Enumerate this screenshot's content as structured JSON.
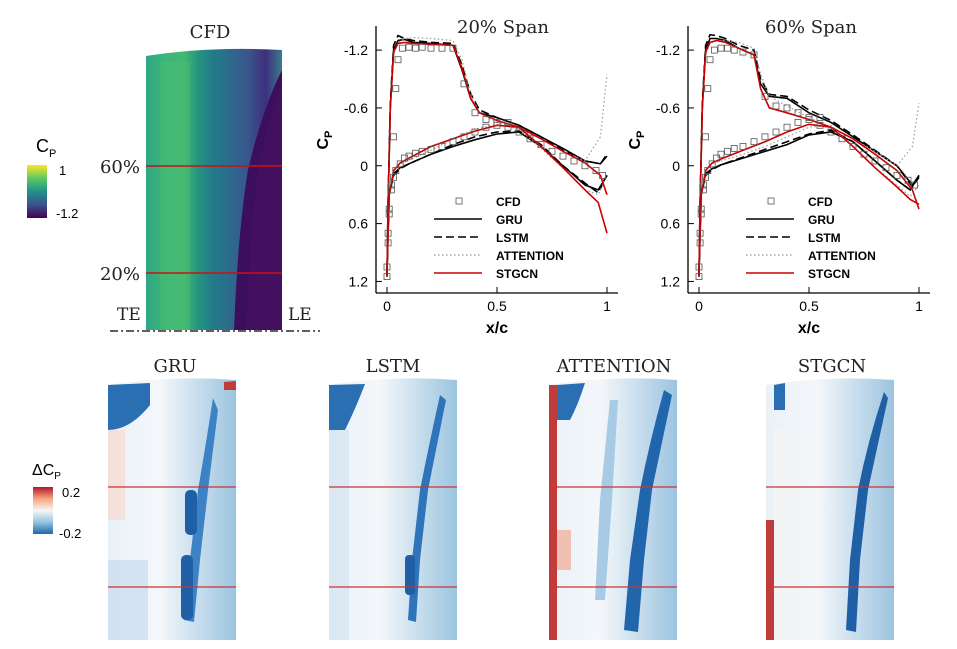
{
  "cfd_panel": {
    "title": "CFD",
    "span_labels": [
      "60%",
      "20%"
    ],
    "edge_labels": {
      "te": "TE",
      "le": "LE"
    },
    "colorbar": {
      "symbol": "C",
      "subscript": "P",
      "max": "1",
      "min": "-1.2",
      "colormap": [
        "#fde725",
        "#5ec962",
        "#21918c",
        "#3b528b",
        "#440154"
      ]
    }
  },
  "error_panels": {
    "titles": [
      "GRU",
      "LSTM",
      "ATTENTION",
      "STGCN"
    ],
    "colorbar": {
      "prefix": "ΔC",
      "subscript": "P",
      "max": "0.2",
      "min": "-0.2",
      "colormap": [
        "#b2182b",
        "#f4a582",
        "#f7f7f7",
        "#92c5de",
        "#2166ac"
      ]
    }
  },
  "chart_data": [
    {
      "type": "line",
      "title": "20% Span",
      "xlabel": "x/c",
      "ylabel": "Cp",
      "xlim": [
        -0.05,
        1.05
      ],
      "ylim": [
        1.32,
        -1.45
      ],
      "y_inverted": true,
      "xticks": [
        "0",
        "0.5",
        "1"
      ],
      "yticks": [
        "-1.2",
        "-0.6",
        "0",
        "0.6",
        "1.2"
      ],
      "legend_position": "lower-center",
      "series": [
        {
          "name": "GRU",
          "color": "#000000",
          "dash": "solid",
          "upper": {
            "x": [
              0,
              0.005,
              0.015,
              0.03,
              0.05,
              0.08,
              0.12,
              0.2,
              0.3,
              0.34,
              0.38,
              0.42,
              0.5,
              0.6,
              0.7,
              0.8,
              0.9,
              0.97,
              1.0
            ],
            "y": [
              1.15,
              0.4,
              -0.6,
              -1.2,
              -1.3,
              -1.31,
              -1.28,
              -1.27,
              -1.25,
              -1.0,
              -0.7,
              -0.55,
              -0.5,
              -0.42,
              -0.3,
              -0.18,
              -0.05,
              -0.02,
              -0.1
            ]
          },
          "lower": {
            "x": [
              0,
              0.01,
              0.03,
              0.06,
              0.1,
              0.2,
              0.3,
              0.4,
              0.5,
              0.6,
              0.7,
              0.8,
              0.9,
              0.96,
              1.0
            ],
            "y": [
              1.1,
              0.3,
              0.08,
              0.02,
              -0.02,
              -0.12,
              -0.2,
              -0.27,
              -0.33,
              -0.35,
              -0.2,
              0.0,
              0.2,
              0.25,
              0.1
            ]
          }
        },
        {
          "name": "LSTM",
          "color": "#000000",
          "dash": "dashed",
          "upper": {
            "x": [
              0,
              0.005,
              0.015,
              0.03,
              0.05,
              0.08,
              0.12,
              0.2,
              0.3,
              0.34,
              0.38,
              0.42,
              0.5,
              0.6,
              0.7,
              0.8,
              0.9,
              0.97,
              1.0
            ],
            "y": [
              1.15,
              0.35,
              -0.65,
              -1.25,
              -1.35,
              -1.32,
              -1.3,
              -1.28,
              -1.27,
              -1.05,
              -0.75,
              -0.58,
              -0.5,
              -0.42,
              -0.3,
              -0.16,
              -0.05,
              -0.02,
              -0.12
            ]
          },
          "lower": {
            "x": [
              0,
              0.01,
              0.03,
              0.06,
              0.1,
              0.2,
              0.3,
              0.4,
              0.5,
              0.6,
              0.7,
              0.8,
              0.9,
              0.96,
              1.0
            ],
            "y": [
              1.1,
              0.3,
              0.1,
              0.03,
              -0.02,
              -0.12,
              -0.22,
              -0.3,
              -0.35,
              -0.36,
              -0.22,
              0.0,
              0.18,
              0.28,
              0.1
            ]
          }
        },
        {
          "name": "ATTENTION",
          "color": "#999999",
          "dash": "dotted",
          "upper": {
            "x": [
              0,
              0.005,
              0.015,
              0.03,
              0.05,
              0.08,
              0.12,
              0.2,
              0.3,
              0.34,
              0.38,
              0.42,
              0.5,
              0.6,
              0.7,
              0.8,
              0.9,
              0.97,
              1.0
            ],
            "y": [
              1.15,
              0.4,
              -0.55,
              -1.15,
              -1.28,
              -1.32,
              -1.33,
              -1.32,
              -1.3,
              -1.1,
              -0.75,
              -0.55,
              -0.45,
              -0.38,
              -0.28,
              -0.15,
              -0.05,
              -0.3,
              -0.95
            ]
          },
          "lower": {
            "x": [
              0,
              0.01,
              0.03,
              0.06,
              0.1,
              0.2,
              0.3,
              0.4,
              0.5,
              0.6,
              0.7,
              0.8,
              0.9,
              0.96,
              1.0
            ],
            "y": [
              1.1,
              0.3,
              0.05,
              -0.02,
              -0.06,
              -0.16,
              -0.28,
              -0.38,
              -0.43,
              -0.38,
              -0.18,
              0.02,
              0.25,
              0.3,
              0.1
            ]
          }
        },
        {
          "name": "STGCN",
          "color": "#cc0000",
          "dash": "solid",
          "upper": {
            "x": [
              0,
              0.005,
              0.015,
              0.03,
              0.05,
              0.08,
              0.12,
              0.2,
              0.3,
              0.34,
              0.38,
              0.42,
              0.5,
              0.6,
              0.7,
              0.8,
              0.9,
              0.97,
              1.0
            ],
            "y": [
              1.15,
              0.4,
              -0.6,
              -1.18,
              -1.27,
              -1.28,
              -1.27,
              -1.26,
              -1.25,
              -1.02,
              -0.7,
              -0.55,
              -0.47,
              -0.4,
              -0.28,
              -0.15,
              -0.03,
              0.1,
              0.3
            ]
          },
          "lower": {
            "x": [
              0,
              0.01,
              0.03,
              0.06,
              0.1,
              0.2,
              0.3,
              0.4,
              0.5,
              0.6,
              0.7,
              0.8,
              0.9,
              0.96,
              1.0
            ],
            "y": [
              1.1,
              0.3,
              0.05,
              -0.03,
              -0.08,
              -0.2,
              -0.28,
              -0.36,
              -0.42,
              -0.4,
              -0.2,
              0.02,
              0.25,
              0.38,
              0.7
            ]
          }
        }
      ],
      "markers": {
        "name": "CFD",
        "symbol": "square",
        "x": [
          0,
          0.005,
          0.01,
          0.02,
          0.03,
          0.04,
          0.05,
          0.07,
          0.1,
          0.13,
          0.16,
          0.2,
          0.25,
          0.3,
          0.35,
          0.4,
          0.45,
          0.5,
          0.55,
          0.6,
          0.65,
          0.7,
          0.75,
          0.8,
          0.85,
          0.9,
          0.95,
          0.98,
          0.0,
          0.005,
          0.01,
          0.02,
          0.03,
          0.04,
          0.06,
          0.08,
          0.1,
          0.13,
          0.16,
          0.2,
          0.25,
          0.3,
          0.35,
          0.4,
          0.45,
          0.5,
          0.55
        ],
        "y": [
          1.15,
          0.8,
          0.5,
          0.2,
          -0.3,
          -0.8,
          -1.1,
          -1.22,
          -1.23,
          -1.22,
          -1.23,
          -1.22,
          -1.22,
          -1.22,
          -0.85,
          -0.55,
          -0.48,
          -0.45,
          -0.4,
          -0.35,
          -0.28,
          -0.22,
          -0.15,
          -0.1,
          -0.05,
          0.0,
          0.05,
          0.1,
          1.05,
          0.7,
          0.45,
          0.25,
          0.12,
          0.05,
          -0.02,
          -0.08,
          -0.1,
          -0.13,
          -0.15,
          -0.17,
          -0.2,
          -0.25,
          -0.3,
          -0.35,
          -0.4,
          -0.42,
          -0.45
        ]
      }
    },
    {
      "type": "line",
      "title": "60% Span",
      "xlabel": "x/c",
      "ylabel": "Cp",
      "xlim": [
        -0.05,
        1.05
      ],
      "ylim": [
        1.32,
        -1.45
      ],
      "y_inverted": true,
      "xticks": [
        "0",
        "0.5",
        "1"
      ],
      "yticks": [
        "-1.2",
        "-0.6",
        "0",
        "0.6",
        "1.2"
      ],
      "legend_position": "lower-center",
      "series": [
        {
          "name": "GRU",
          "color": "#000000",
          "dash": "solid",
          "upper": {
            "x": [
              0,
              0.005,
              0.015,
              0.03,
              0.05,
              0.08,
              0.12,
              0.18,
              0.25,
              0.28,
              0.32,
              0.4,
              0.5,
              0.6,
              0.7,
              0.8,
              0.9,
              0.97,
              1.0
            ],
            "y": [
              1.15,
              0.4,
              -0.6,
              -1.2,
              -1.32,
              -1.32,
              -1.3,
              -1.22,
              -1.15,
              -0.85,
              -0.72,
              -0.7,
              -0.55,
              -0.45,
              -0.3,
              -0.15,
              0.0,
              0.2,
              0.1
            ]
          },
          "lower": {
            "x": [
              0,
              0.01,
              0.03,
              0.06,
              0.1,
              0.2,
              0.3,
              0.4,
              0.5,
              0.6,
              0.7,
              0.8,
              0.9,
              0.96,
              1.0
            ],
            "y": [
              1.1,
              0.3,
              0.08,
              0.03,
              -0.01,
              -0.08,
              -0.15,
              -0.22,
              -0.32,
              -0.35,
              -0.25,
              -0.05,
              0.15,
              0.25,
              0.1
            ]
          }
        },
        {
          "name": "LSTM",
          "color": "#000000",
          "dash": "dashed",
          "upper": {
            "x": [
              0,
              0.005,
              0.015,
              0.03,
              0.05,
              0.08,
              0.12,
              0.18,
              0.25,
              0.28,
              0.32,
              0.4,
              0.5,
              0.6,
              0.7,
              0.8,
              0.9,
              0.97,
              1.0
            ],
            "y": [
              1.15,
              0.35,
              -0.65,
              -1.25,
              -1.36,
              -1.35,
              -1.32,
              -1.25,
              -1.2,
              -0.9,
              -0.74,
              -0.72,
              -0.58,
              -0.47,
              -0.32,
              -0.16,
              0.0,
              0.22,
              0.12
            ]
          },
          "lower": {
            "x": [
              0,
              0.01,
              0.03,
              0.06,
              0.1,
              0.2,
              0.3,
              0.4,
              0.5,
              0.6,
              0.7,
              0.8,
              0.9,
              0.96,
              1.0
            ],
            "y": [
              1.1,
              0.3,
              0.1,
              0.04,
              -0.01,
              -0.09,
              -0.17,
              -0.25,
              -0.33,
              -0.37,
              -0.25,
              -0.05,
              0.15,
              0.25,
              0.1
            ]
          }
        },
        {
          "name": "ATTENTION",
          "color": "#999999",
          "dash": "dotted",
          "upper": {
            "x": [
              0,
              0.005,
              0.015,
              0.03,
              0.05,
              0.08,
              0.12,
              0.18,
              0.25,
              0.28,
              0.32,
              0.4,
              0.5,
              0.6,
              0.7,
              0.8,
              0.9,
              0.97,
              1.0
            ],
            "y": [
              1.15,
              0.4,
              -0.55,
              -1.15,
              -1.27,
              -1.3,
              -1.3,
              -1.28,
              -1.22,
              -0.95,
              -0.72,
              -0.62,
              -0.5,
              -0.4,
              -0.28,
              -0.15,
              0.0,
              -0.2,
              -0.65
            ]
          },
          "lower": {
            "x": [
              0,
              0.01,
              0.03,
              0.06,
              0.1,
              0.2,
              0.3,
              0.4,
              0.5,
              0.6,
              0.7,
              0.8,
              0.9,
              0.96,
              1.0
            ],
            "y": [
              1.1,
              0.3,
              0.05,
              -0.02,
              -0.05,
              -0.12,
              -0.2,
              -0.3,
              -0.4,
              -0.42,
              -0.2,
              0.02,
              0.2,
              0.32,
              0.2
            ]
          }
        },
        {
          "name": "STGCN",
          "color": "#cc0000",
          "dash": "solid",
          "upper": {
            "x": [
              0,
              0.005,
              0.015,
              0.03,
              0.05,
              0.08,
              0.12,
              0.18,
              0.25,
              0.28,
              0.32,
              0.4,
              0.5,
              0.6,
              0.7,
              0.8,
              0.9,
              0.97,
              1.0
            ],
            "y": [
              1.15,
              0.4,
              -0.6,
              -1.18,
              -1.28,
              -1.3,
              -1.28,
              -1.22,
              -1.15,
              -0.8,
              -0.6,
              -0.55,
              -0.48,
              -0.4,
              -0.28,
              -0.12,
              0.05,
              0.25,
              0.45
            ]
          },
          "lower": {
            "x": [
              0,
              0.01,
              0.03,
              0.06,
              0.1,
              0.2,
              0.3,
              0.4,
              0.5,
              0.6,
              0.7,
              0.8,
              0.9,
              0.96,
              1.0
            ],
            "y": [
              1.1,
              0.3,
              0.05,
              -0.03,
              -0.07,
              -0.16,
              -0.25,
              -0.35,
              -0.43,
              -0.4,
              -0.2,
              0.02,
              0.22,
              0.35,
              0.4
            ]
          }
        }
      ],
      "markers": {
        "name": "CFD",
        "symbol": "square",
        "x": [
          0,
          0.005,
          0.01,
          0.02,
          0.03,
          0.04,
          0.05,
          0.07,
          0.1,
          0.13,
          0.16,
          0.2,
          0.25,
          0.3,
          0.35,
          0.4,
          0.45,
          0.5,
          0.55,
          0.6,
          0.65,
          0.7,
          0.75,
          0.8,
          0.85,
          0.9,
          0.95,
          0.98,
          0.0,
          0.005,
          0.01,
          0.02,
          0.03,
          0.04,
          0.06,
          0.08,
          0.1,
          0.13,
          0.16,
          0.2,
          0.25,
          0.3,
          0.35,
          0.4,
          0.45,
          0.5,
          0.55
        ],
        "y": [
          1.15,
          0.8,
          0.5,
          0.2,
          -0.3,
          -0.8,
          -1.1,
          -1.2,
          -1.22,
          -1.22,
          -1.2,
          -1.18,
          -1.15,
          -0.72,
          -0.62,
          -0.6,
          -0.55,
          -0.5,
          -0.42,
          -0.35,
          -0.28,
          -0.2,
          -0.12,
          -0.05,
          0.02,
          0.1,
          0.15,
          0.2,
          1.05,
          0.7,
          0.45,
          0.25,
          0.12,
          0.05,
          -0.02,
          -0.08,
          -0.12,
          -0.15,
          -0.18,
          -0.2,
          -0.25,
          -0.3,
          -0.35,
          -0.4,
          -0.45,
          -0.48,
          -0.5
        ]
      }
    }
  ]
}
